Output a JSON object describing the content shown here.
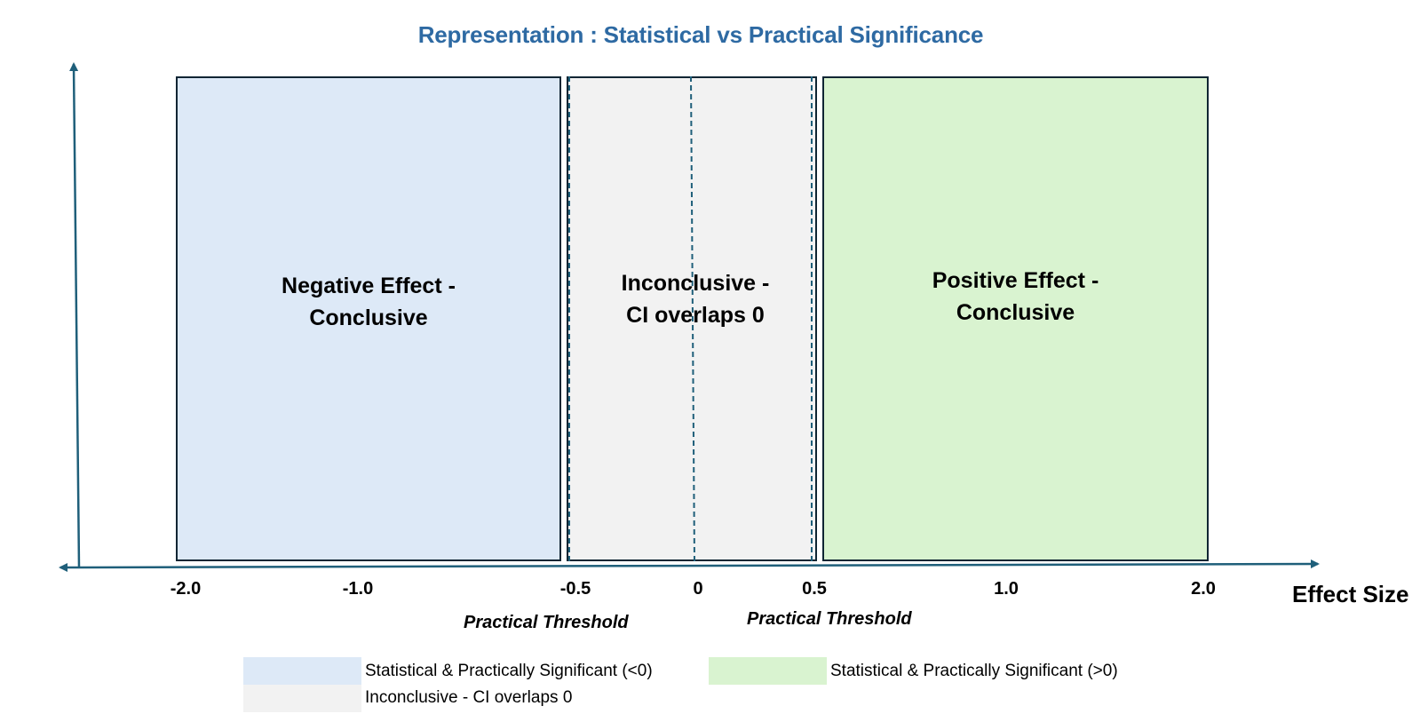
{
  "title": "Representation : Statistical vs Practical Significance",
  "zones": {
    "negative": {
      "label": "Negative Effect -\nConclusive",
      "color": "#dde9f7"
    },
    "inconclusive": {
      "label": "Inconclusive -\nCI overlaps 0",
      "color": "#f2f2f2"
    },
    "positive": {
      "label": "Positive Effect -\nConclusive",
      "color": "#d9f3d0"
    }
  },
  "x_axis": {
    "label": "Effect Size",
    "ticks": [
      "-2.0",
      "-1.0",
      "-0.5",
      "0",
      "0.5",
      "1.0",
      "2.0"
    ],
    "axis_color": "#1f5f7a"
  },
  "thresholds": {
    "left_label": "Practical Threshold",
    "right_label": "Practical Threshold"
  },
  "legend": {
    "items": [
      {
        "label": "Statistical & Practically Significant (<0)",
        "color": "#dde9f7"
      },
      {
        "label": "Statistical & Practically Significant (>0)",
        "color": "#d9f3d0"
      },
      {
        "label": "Inconclusive - CI overlaps 0",
        "color": "#f2f2f2"
      }
    ]
  }
}
